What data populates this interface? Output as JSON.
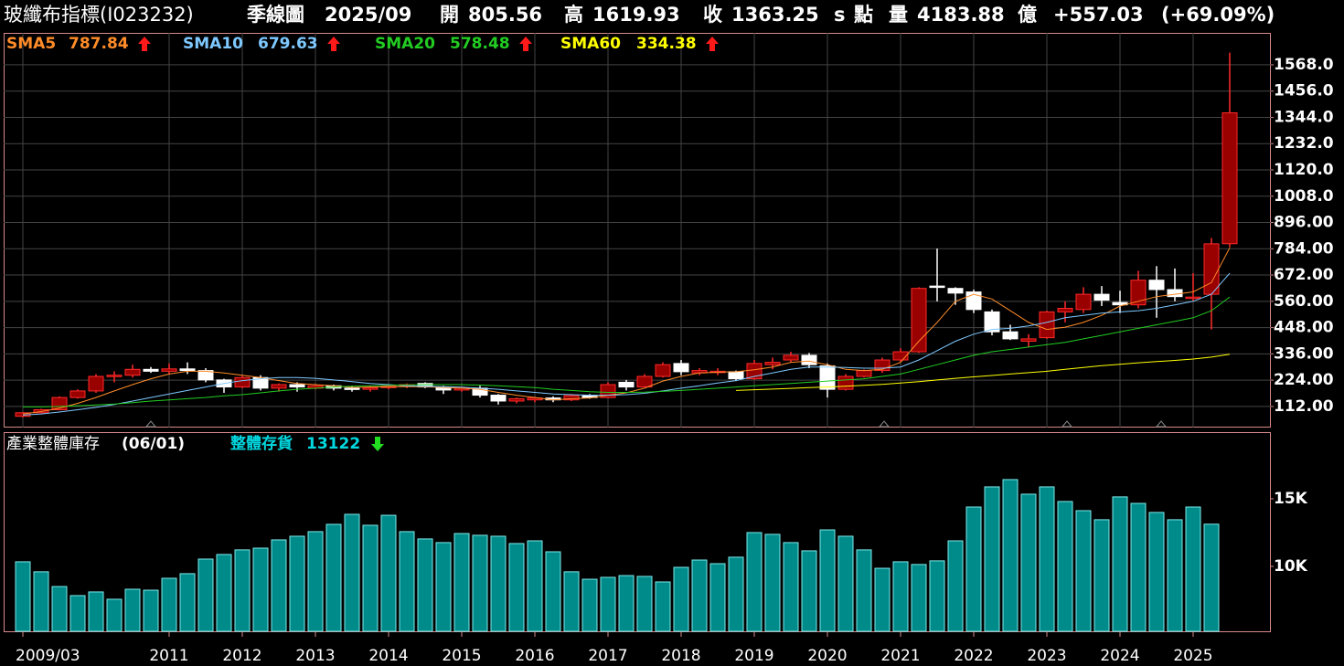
{
  "header": {
    "title": "玻纖布指標(I023232)",
    "period": "季線圖",
    "date": "2025/09",
    "open_label": "開",
    "open": "805.56",
    "high_label": "高",
    "high": "1619.93",
    "close_label": "收",
    "close": "1363.25",
    "unit": "s",
    "point": "點",
    "volume_label": "量",
    "volume": "4183.88",
    "volume_unit": "億",
    "change": "+557.03",
    "change_pct": "(+69.09%)"
  },
  "chart_data": [
    {
      "type": "candlestick",
      "categories": [
        "2009/03",
        null,
        null,
        null,
        null,
        null,
        null,
        null,
        "2011",
        null,
        null,
        null,
        "2012",
        null,
        null,
        null,
        "2013",
        null,
        null,
        null,
        "2014",
        null,
        null,
        null,
        "2015",
        null,
        null,
        null,
        "2016",
        null,
        null,
        null,
        "2017",
        null,
        null,
        null,
        "2018",
        null,
        null,
        null,
        "2019",
        null,
        null,
        null,
        "2020",
        null,
        null,
        null,
        "2021",
        null,
        null,
        null,
        "2022",
        null,
        null,
        null,
        "2023",
        null,
        null,
        null,
        "2024",
        null,
        null,
        null,
        "2025",
        null,
        null
      ],
      "open": [
        70,
        85,
        98,
        150,
        178,
        240,
        245,
        270,
        262,
        272,
        265,
        225,
        195,
        235,
        190,
        205,
        190,
        200,
        190,
        185,
        192,
        200,
        210,
        195,
        182,
        190,
        160,
        135,
        140,
        148,
        140,
        158,
        150,
        215,
        195,
        240,
        295,
        255,
        260,
        260,
        230,
        290,
        310,
        330,
        285,
        185,
        240,
        265,
        310,
        345,
        625,
        615,
        600,
        515,
        430,
        390,
        405,
        515,
        525,
        590,
        555,
        545,
        650,
        610,
        575,
        590,
        805.56
      ],
      "high": [
        88,
        102,
        155,
        185,
        250,
        262,
        290,
        280,
        295,
        300,
        275,
        230,
        245,
        245,
        210,
        215,
        205,
        205,
        200,
        200,
        205,
        210,
        215,
        200,
        195,
        200,
        165,
        150,
        152,
        155,
        165,
        165,
        215,
        225,
        250,
        300,
        310,
        275,
        275,
        265,
        310,
        320,
        345,
        340,
        295,
        250,
        270,
        320,
        360,
        620,
        785,
        620,
        610,
        525,
        460,
        420,
        520,
        560,
        620,
        625,
        605,
        690,
        710,
        700,
        680,
        830,
        1619.93
      ],
      "low": [
        65,
        82,
        95,
        145,
        170,
        215,
        235,
        255,
        248,
        250,
        215,
        170,
        190,
        180,
        175,
        175,
        185,
        180,
        175,
        175,
        185,
        190,
        190,
        165,
        175,
        150,
        120,
        125,
        130,
        130,
        135,
        145,
        148,
        180,
        195,
        235,
        245,
        245,
        245,
        220,
        225,
        270,
        300,
        275,
        150,
        180,
        235,
        255,
        300,
        340,
        560,
        545,
        510,
        415,
        395,
        365,
        400,
        470,
        510,
        540,
        510,
        530,
        490,
        560,
        560,
        440,
        790
      ],
      "close": [
        85,
        98,
        150,
        178,
        240,
        245,
        270,
        262,
        272,
        265,
        225,
        195,
        235,
        190,
        205,
        195,
        200,
        190,
        185,
        192,
        200,
        205,
        195,
        182,
        190,
        160,
        135,
        145,
        148,
        140,
        158,
        150,
        205,
        195,
        240,
        290,
        260,
        265,
        262,
        230,
        295,
        300,
        330,
        290,
        185,
        240,
        265,
        310,
        345,
        615,
        620,
        595,
        525,
        430,
        400,
        400,
        515,
        530,
        590,
        565,
        545,
        650,
        610,
        580,
        578,
        805,
        1363.25
      ],
      "up_color": "#990000",
      "down_color": "#ffffff",
      "series": [
        {
          "name": "SMA5",
          "color": "#ff8c29",
          "values": [
            80,
            90,
            105,
            125,
            150,
            178,
            205,
            230,
            250,
            262,
            262,
            255,
            245,
            235,
            222,
            210,
            205,
            200,
            193,
            195,
            196,
            196,
            196,
            193,
            190,
            185,
            172,
            160,
            150,
            140,
            145,
            148,
            160,
            170,
            190,
            220,
            240,
            255,
            258,
            260,
            268,
            280,
            300,
            305,
            290,
            270,
            265,
            270,
            300,
            390,
            470,
            560,
            590,
            570,
            520,
            470,
            440,
            450,
            470,
            500,
            540,
            560,
            580,
            590,
            600,
            640,
            787.84
          ]
        },
        {
          "name": "SMA10",
          "color": "#7ec8ff",
          "values": [
            75,
            80,
            88,
            98,
            108,
            120,
            135,
            150,
            165,
            180,
            195,
            210,
            222,
            230,
            235,
            235,
            232,
            225,
            218,
            210,
            205,
            200,
            198,
            196,
            194,
            190,
            185,
            178,
            172,
            165,
            162,
            160,
            160,
            162,
            168,
            178,
            190,
            200,
            212,
            222,
            240,
            255,
            270,
            280,
            280,
            278,
            275,
            275,
            280,
            310,
            350,
            390,
            420,
            440,
            445,
            455,
            470,
            490,
            500,
            510,
            515,
            520,
            530,
            545,
            560,
            590,
            679.63
          ]
        },
        {
          "name": "SMA20",
          "color": "#22cc22",
          "values": [
            110,
            110,
            112,
            115,
            118,
            122,
            128,
            135,
            140,
            145,
            150,
            157,
            162,
            170,
            178,
            185,
            190,
            195,
            198,
            200,
            202,
            204,
            205,
            205,
            205,
            203,
            200,
            196,
            192,
            185,
            180,
            175,
            172,
            172,
            173,
            176,
            180,
            185,
            190,
            195,
            200,
            205,
            210,
            215,
            220,
            225,
            230,
            240,
            250,
            270,
            290,
            310,
            330,
            345,
            355,
            365,
            375,
            385,
            400,
            415,
            430,
            445,
            460,
            475,
            490,
            520,
            578.48
          ]
        },
        {
          "name": "SMA60",
          "color": "#ffff00",
          "values": [
            null,
            null,
            null,
            null,
            null,
            null,
            null,
            null,
            null,
            null,
            null,
            null,
            null,
            null,
            null,
            null,
            null,
            null,
            null,
            null,
            null,
            null,
            null,
            null,
            null,
            null,
            null,
            null,
            null,
            null,
            null,
            null,
            null,
            null,
            null,
            null,
            null,
            null,
            null,
            180,
            183,
            186,
            189,
            192,
            195,
            198,
            202,
            206,
            212,
            218,
            225,
            232,
            238,
            244,
            250,
            256,
            262,
            270,
            278,
            286,
            292,
            298,
            303,
            308,
            314,
            322,
            334.38
          ]
        }
      ],
      "ylim": [
        22,
        1704
      ],
      "yticks": [
        {
          "value": 112,
          "label": "112.00"
        },
        {
          "value": 224,
          "label": "224.00"
        },
        {
          "value": 336,
          "label": "336.00"
        },
        {
          "value": 448,
          "label": "448.00"
        },
        {
          "value": 560,
          "label": "560.00"
        },
        {
          "value": 672,
          "label": "672.00"
        },
        {
          "value": 784,
          "label": "784.00"
        },
        {
          "value": 896,
          "label": "896.00"
        },
        {
          "value": 1008,
          "label": "1008.0"
        },
        {
          "value": 1120,
          "label": "1120.0"
        },
        {
          "value": 1232,
          "label": "1232.0"
        },
        {
          "value": 1344,
          "label": "1344.0"
        },
        {
          "value": 1456,
          "label": "1456.0"
        },
        {
          "value": 1568,
          "label": "1568.0"
        }
      ],
      "grid": true
    },
    {
      "type": "bar",
      "title": "產業整體庫存",
      "date": "(06/01)",
      "series_name": "整體存貨",
      "color": "#008b8b",
      "values": [
        10340,
        9600,
        8510,
        7840,
        8110,
        7570,
        8310,
        8240,
        9120,
        9460,
        10540,
        10880,
        11220,
        11350,
        11960,
        12230,
        12570,
        13110,
        13850,
        13040,
        13780,
        12570,
        12030,
        11760,
        12430,
        12300,
        12230,
        11690,
        11890,
        11080,
        9600,
        9050,
        9190,
        9320,
        9260,
        8850,
        9930,
        10470,
        10200,
        10680,
        12500,
        12370,
        11760,
        11150,
        12700,
        12230,
        11220,
        9860,
        10340,
        10140,
        10410,
        11890,
        14390,
        15880,
        16420,
        15340,
        15880,
        14800,
        14120,
        13450,
        15140,
        14660,
        13990,
        13450,
        14390,
        13122,
        null
      ],
      "ylim": [
        5200,
        19930
      ],
      "yticks": [
        {
          "value": 10000,
          "label": "10K"
        },
        {
          "value": 15000,
          "label": "15K"
        }
      ],
      "grid": false
    }
  ]
}
